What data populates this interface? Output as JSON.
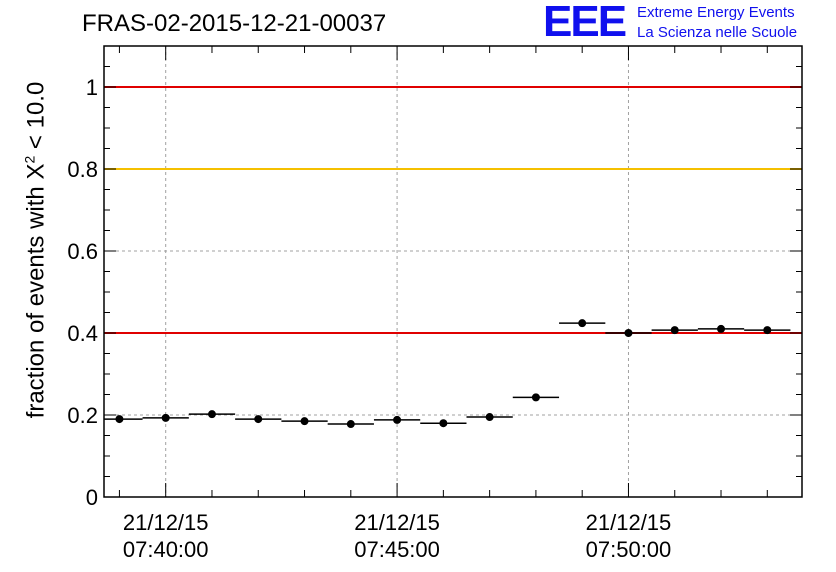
{
  "header": {
    "run_title": "FRAS-02-2015-12-21-00037"
  },
  "logo": {
    "mark": "EEE",
    "line1": "Extreme Energy Events",
    "line2": "La Scienza nelle Scuole",
    "color": "#1010ee"
  },
  "chart_data": {
    "type": "scatter",
    "ylabel": {
      "prefix": "fraction of events with X",
      "superscript": "2",
      "suffix": " < 10.0"
    },
    "xlim": [
      "2015-12-21 07:38:40",
      "2015-12-21 07:53:45"
    ],
    "ylim": [
      0,
      1.1
    ],
    "yticks": [
      {
        "value": 0,
        "label": "0"
      },
      {
        "value": 0.2,
        "label": "0.2"
      },
      {
        "value": 0.4,
        "label": "0.4"
      },
      {
        "value": 0.6,
        "label": "0.6"
      },
      {
        "value": 0.8,
        "label": "0.8"
      },
      {
        "value": 1,
        "label": "1"
      }
    ],
    "xticks": [
      {
        "value": "2015-12-21 07:40:00",
        "date_label": "21/12/15",
        "time_label": "07:40:00"
      },
      {
        "value": "2015-12-21 07:45:00",
        "date_label": "21/12/15",
        "time_label": "07:45:00"
      },
      {
        "value": "2015-12-21 07:50:00",
        "date_label": "21/12/15",
        "time_label": "07:50:00"
      }
    ],
    "grid": true,
    "bin_width_seconds": 60,
    "points": [
      {
        "x": "2015-12-21 07:39:00",
        "y": 0.19
      },
      {
        "x": "2015-12-21 07:40:00",
        "y": 0.193
      },
      {
        "x": "2015-12-21 07:41:00",
        "y": 0.202
      },
      {
        "x": "2015-12-21 07:42:00",
        "y": 0.19
      },
      {
        "x": "2015-12-21 07:43:00",
        "y": 0.185
      },
      {
        "x": "2015-12-21 07:44:00",
        "y": 0.178
      },
      {
        "x": "2015-12-21 07:45:00",
        "y": 0.188
      },
      {
        "x": "2015-12-21 07:46:00",
        "y": 0.18
      },
      {
        "x": "2015-12-21 07:47:00",
        "y": 0.195
      },
      {
        "x": "2015-12-21 07:48:00",
        "y": 0.243
      },
      {
        "x": "2015-12-21 07:49:00",
        "y": 0.424
      },
      {
        "x": "2015-12-21 07:50:00",
        "y": 0.4
      },
      {
        "x": "2015-12-21 07:51:00",
        "y": 0.407
      },
      {
        "x": "2015-12-21 07:52:00",
        "y": 0.41
      },
      {
        "x": "2015-12-21 07:53:00",
        "y": 0.407
      }
    ],
    "reference_lines": [
      {
        "y": 1.0,
        "color": "#e00000"
      },
      {
        "y": 0.8,
        "color": "#f5c000"
      },
      {
        "y": 0.4,
        "color": "#e00000"
      }
    ]
  }
}
